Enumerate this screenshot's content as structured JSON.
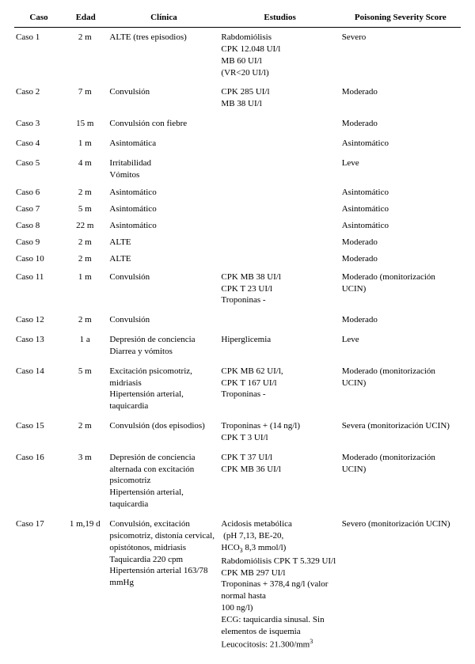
{
  "table": {
    "columns": {
      "caso": "Caso",
      "edad": "Edad",
      "clinica": "Clínica",
      "estudios": "Estudios",
      "score": "Poisoning Severity Score"
    },
    "rows": [
      {
        "caso": "Caso 1",
        "edad": "2 m",
        "clinica": [
          "ALTE (tres episodios)"
        ],
        "estudios": [
          "Rabdomiólisis",
          "CPK 12.048 UI/l",
          "MB 60 UI/l",
          "(VR<20 UI/l)"
        ],
        "score": "Severo"
      },
      {
        "caso": "Caso 2",
        "edad": "7 m",
        "clinica": [
          "Convulsión"
        ],
        "estudios": [
          "CPK 285 UI/l",
          "MB 38 UI/l"
        ],
        "score": "Moderado"
      },
      {
        "caso": "Caso 3",
        "edad": "15 m",
        "clinica": [
          "Convulsión con fiebre"
        ],
        "estudios": [],
        "score": "Moderado"
      },
      {
        "caso": "Caso 4",
        "edad": "1 m",
        "clinica": [
          "Asintomática"
        ],
        "estudios": [],
        "score": "Asintomático"
      },
      {
        "caso": "Caso 5",
        "edad": "4 m",
        "clinica": [
          "Irritabilidad",
          "Vómitos"
        ],
        "estudios": [],
        "score": "Leve"
      },
      {
        "caso": "Caso 6",
        "edad": "2 m",
        "clinica": [
          "Asintomático"
        ],
        "estudios": [],
        "score": "Asintomático"
      },
      {
        "caso": "Caso 7",
        "edad": "5 m",
        "clinica": [
          "Asintomático"
        ],
        "estudios": [],
        "score": "Asintomático"
      },
      {
        "caso": "Caso 8",
        "edad": "22 m",
        "clinica": [
          "Asintomático"
        ],
        "estudios": [],
        "score": "Asintomático"
      },
      {
        "caso": "Caso 9",
        "edad": "2 m",
        "clinica": [
          "ALTE"
        ],
        "estudios": [],
        "score": "Moderado"
      },
      {
        "caso": "Caso 10",
        "edad": "2 m",
        "clinica": [
          "ALTE"
        ],
        "estudios": [],
        "score": "Moderado"
      },
      {
        "caso": "Caso 11",
        "edad": "1 m",
        "clinica": [
          "Convulsión"
        ],
        "estudios": [
          "CPK MB 38 UI/l",
          "CPK T 23 UI/l",
          "Troponinas -"
        ],
        "score": "Moderado (monitorización UCIN)"
      },
      {
        "caso": "Caso 12",
        "edad": "2 m",
        "clinica": [
          "Convulsión"
        ],
        "estudios": [],
        "score": "Moderado"
      },
      {
        "caso": "Caso 13",
        "edad": "1 a",
        "clinica": [
          "Depresión de conciencia",
          "Diarrea y vómitos"
        ],
        "estudios": [
          "Hiperglicemia"
        ],
        "score": "Leve"
      },
      {
        "caso": "Caso 14",
        "edad": "5 m",
        "clinica": [
          "Excitación psicomotriz, midriasis",
          "Hipertensión arterial, taquicardia"
        ],
        "estudios": [
          "CPK MB 62 UI/l,",
          "CPK T 167 UI/l",
          "Troponinas -"
        ],
        "score": "Moderado (monitorización UCIN)"
      },
      {
        "caso": "Caso 15",
        "edad": "2 m",
        "clinica": [
          "Convulsión (dos episodios)"
        ],
        "estudios": [
          "Troponinas + (14 ng/l)",
          "CPK T 3 UI/l"
        ],
        "score": "Severa (monitorización UCIN)"
      },
      {
        "caso": "Caso 16",
        "edad": "3 m",
        "clinica": [
          "Depresión de conciencia alternada con excitación psicomotriz",
          "Hipertensión arterial, taquicardia"
        ],
        "estudios": [
          "CPK T 37 UI/l",
          "CPK MB 36 UI/l"
        ],
        "score": "Moderado (monitorización UCIN)"
      },
      {
        "caso": "Caso 17",
        "edad": "1 m,19 d",
        "clinica": [
          "Convulsión, excitación psicomotriz, distonía cervical, opistótonos, midriasis",
          "Taquicardia 220 cpm",
          "Hipertensión arterial 163/78 mmHg"
        ],
        "estudios_html": [
          "Acidosis metabólica",
          "&nbsp;(pH 7,13, BE-20,",
          "HCO<sub>3</sub> 8,3 mmol/l)",
          "Rabdomiólisis CPK T 5.329 UI/l",
          "CPK MB 297 UI/l",
          "Troponinas + 378,4 ng/l (valor normal hasta",
          "100 ng/l)",
          "ECG: taquicardia sinusal. Sin elementos de isquemia",
          "Leucocitosis: 21.300/mm<sup>3</sup>"
        ],
        "score": "Severo (monitorización UCIN)"
      }
    ],
    "style": {
      "font_family": "Times New Roman",
      "font_size_pt": 8,
      "header_border_color": "#000000",
      "text_color": "#000000",
      "background_color": "#ffffff",
      "col_widths_pct": [
        11,
        10,
        25,
        27,
        27
      ]
    }
  }
}
